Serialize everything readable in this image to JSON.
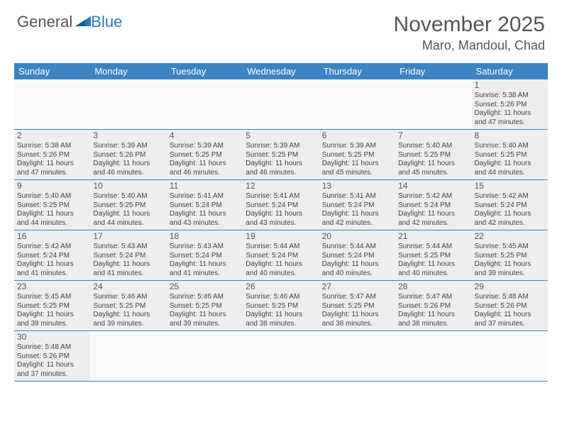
{
  "logo": {
    "general": "General",
    "blue": "Blue"
  },
  "title": "November 2025",
  "location": "Maro, Mandoul, Chad",
  "colors": {
    "header_bg": "#3b84c4",
    "header_text": "#ffffff",
    "border": "#3b84c4",
    "cell_even": "#eeeeee",
    "cell_odd": "#ffffff",
    "text": "#444444",
    "title_text": "#555555",
    "logo_blue": "#2978bd"
  },
  "day_headers": [
    "Sunday",
    "Monday",
    "Tuesday",
    "Wednesday",
    "Thursday",
    "Friday",
    "Saturday"
  ],
  "weeks": [
    [
      {
        "empty": true
      },
      {
        "empty": true
      },
      {
        "empty": true
      },
      {
        "empty": true
      },
      {
        "empty": true
      },
      {
        "empty": true
      },
      {
        "day": "1",
        "sunrise": "Sunrise: 5:38 AM",
        "sunset": "Sunset: 5:26 PM",
        "dl1": "Daylight: 11 hours",
        "dl2": "and 47 minutes."
      }
    ],
    [
      {
        "day": "2",
        "sunrise": "Sunrise: 5:38 AM",
        "sunset": "Sunset: 5:26 PM",
        "dl1": "Daylight: 11 hours",
        "dl2": "and 47 minutes."
      },
      {
        "day": "3",
        "sunrise": "Sunrise: 5:39 AM",
        "sunset": "Sunset: 5:26 PM",
        "dl1": "Daylight: 11 hours",
        "dl2": "and 46 minutes."
      },
      {
        "day": "4",
        "sunrise": "Sunrise: 5:39 AM",
        "sunset": "Sunset: 5:25 PM",
        "dl1": "Daylight: 11 hours",
        "dl2": "and 46 minutes."
      },
      {
        "day": "5",
        "sunrise": "Sunrise: 5:39 AM",
        "sunset": "Sunset: 5:25 PM",
        "dl1": "Daylight: 11 hours",
        "dl2": "and 46 minutes."
      },
      {
        "day": "6",
        "sunrise": "Sunrise: 5:39 AM",
        "sunset": "Sunset: 5:25 PM",
        "dl1": "Daylight: 11 hours",
        "dl2": "and 45 minutes."
      },
      {
        "day": "7",
        "sunrise": "Sunrise: 5:40 AM",
        "sunset": "Sunset: 5:25 PM",
        "dl1": "Daylight: 11 hours",
        "dl2": "and 45 minutes."
      },
      {
        "day": "8",
        "sunrise": "Sunrise: 5:40 AM",
        "sunset": "Sunset: 5:25 PM",
        "dl1": "Daylight: 11 hours",
        "dl2": "and 44 minutes."
      }
    ],
    [
      {
        "day": "9",
        "sunrise": "Sunrise: 5:40 AM",
        "sunset": "Sunset: 5:25 PM",
        "dl1": "Daylight: 11 hours",
        "dl2": "and 44 minutes."
      },
      {
        "day": "10",
        "sunrise": "Sunrise: 5:40 AM",
        "sunset": "Sunset: 5:25 PM",
        "dl1": "Daylight: 11 hours",
        "dl2": "and 44 minutes."
      },
      {
        "day": "11",
        "sunrise": "Sunrise: 5:41 AM",
        "sunset": "Sunset: 5:24 PM",
        "dl1": "Daylight: 11 hours",
        "dl2": "and 43 minutes."
      },
      {
        "day": "12",
        "sunrise": "Sunrise: 5:41 AM",
        "sunset": "Sunset: 5:24 PM",
        "dl1": "Daylight: 11 hours",
        "dl2": "and 43 minutes."
      },
      {
        "day": "13",
        "sunrise": "Sunrise: 5:41 AM",
        "sunset": "Sunset: 5:24 PM",
        "dl1": "Daylight: 11 hours",
        "dl2": "and 42 minutes."
      },
      {
        "day": "14",
        "sunrise": "Sunrise: 5:42 AM",
        "sunset": "Sunset: 5:24 PM",
        "dl1": "Daylight: 11 hours",
        "dl2": "and 42 minutes."
      },
      {
        "day": "15",
        "sunrise": "Sunrise: 5:42 AM",
        "sunset": "Sunset: 5:24 PM",
        "dl1": "Daylight: 11 hours",
        "dl2": "and 42 minutes."
      }
    ],
    [
      {
        "day": "16",
        "sunrise": "Sunrise: 5:42 AM",
        "sunset": "Sunset: 5:24 PM",
        "dl1": "Daylight: 11 hours",
        "dl2": "and 41 minutes."
      },
      {
        "day": "17",
        "sunrise": "Sunrise: 5:43 AM",
        "sunset": "Sunset: 5:24 PM",
        "dl1": "Daylight: 11 hours",
        "dl2": "and 41 minutes."
      },
      {
        "day": "18",
        "sunrise": "Sunrise: 5:43 AM",
        "sunset": "Sunset: 5:24 PM",
        "dl1": "Daylight: 11 hours",
        "dl2": "and 41 minutes."
      },
      {
        "day": "19",
        "sunrise": "Sunrise: 5:44 AM",
        "sunset": "Sunset: 5:24 PM",
        "dl1": "Daylight: 11 hours",
        "dl2": "and 40 minutes."
      },
      {
        "day": "20",
        "sunrise": "Sunrise: 5:44 AM",
        "sunset": "Sunset: 5:24 PM",
        "dl1": "Daylight: 11 hours",
        "dl2": "and 40 minutes."
      },
      {
        "day": "21",
        "sunrise": "Sunrise: 5:44 AM",
        "sunset": "Sunset: 5:25 PM",
        "dl1": "Daylight: 11 hours",
        "dl2": "and 40 minutes."
      },
      {
        "day": "22",
        "sunrise": "Sunrise: 5:45 AM",
        "sunset": "Sunset: 5:25 PM",
        "dl1": "Daylight: 11 hours",
        "dl2": "and 39 minutes."
      }
    ],
    [
      {
        "day": "23",
        "sunrise": "Sunrise: 5:45 AM",
        "sunset": "Sunset: 5:25 PM",
        "dl1": "Daylight: 11 hours",
        "dl2": "and 39 minutes."
      },
      {
        "day": "24",
        "sunrise": "Sunrise: 5:46 AM",
        "sunset": "Sunset: 5:25 PM",
        "dl1": "Daylight: 11 hours",
        "dl2": "and 39 minutes."
      },
      {
        "day": "25",
        "sunrise": "Sunrise: 5:46 AM",
        "sunset": "Sunset: 5:25 PM",
        "dl1": "Daylight: 11 hours",
        "dl2": "and 39 minutes."
      },
      {
        "day": "26",
        "sunrise": "Sunrise: 5:46 AM",
        "sunset": "Sunset: 5:25 PM",
        "dl1": "Daylight: 11 hours",
        "dl2": "and 38 minutes."
      },
      {
        "day": "27",
        "sunrise": "Sunrise: 5:47 AM",
        "sunset": "Sunset: 5:25 PM",
        "dl1": "Daylight: 11 hours",
        "dl2": "and 38 minutes."
      },
      {
        "day": "28",
        "sunrise": "Sunrise: 5:47 AM",
        "sunset": "Sunset: 5:26 PM",
        "dl1": "Daylight: 11 hours",
        "dl2": "and 38 minutes."
      },
      {
        "day": "29",
        "sunrise": "Sunrise: 5:48 AM",
        "sunset": "Sunset: 5:26 PM",
        "dl1": "Daylight: 11 hours",
        "dl2": "and 37 minutes."
      }
    ],
    [
      {
        "day": "30",
        "sunrise": "Sunrise: 5:48 AM",
        "sunset": "Sunset: 5:26 PM",
        "dl1": "Daylight: 11 hours",
        "dl2": "and 37 minutes."
      },
      {
        "empty": true
      },
      {
        "empty": true
      },
      {
        "empty": true
      },
      {
        "empty": true
      },
      {
        "empty": true
      },
      {
        "empty": true
      }
    ]
  ]
}
